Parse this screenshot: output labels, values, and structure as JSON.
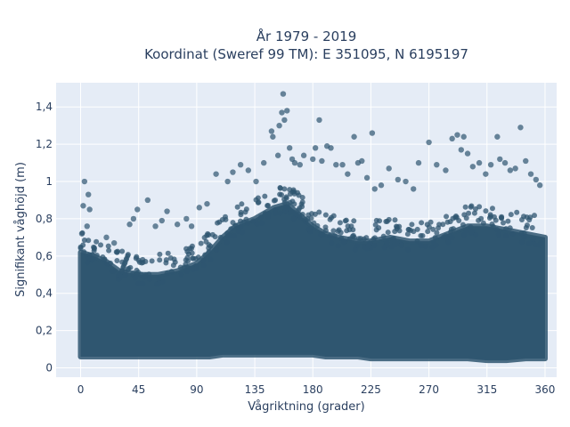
{
  "chart_data": {
    "type": "scatter",
    "title": [
      "År 1979 - 2019",
      "Koordinat (Sweref 99 TM): E 351095, N 6195197"
    ],
    "xlabel": "Vågriktning (grader)",
    "ylabel": "Signifikant våghöjd (m)",
    "xlim": [
      -19,
      369
    ],
    "ylim": [
      -0.05,
      1.53
    ],
    "xticks": [
      0,
      45,
      90,
      135,
      180,
      225,
      270,
      315,
      360
    ],
    "yticks": [
      0,
      0.2,
      0.4,
      0.6,
      0.8,
      1,
      1.2,
      1.4
    ],
    "yticklabels": [
      "0",
      "0,2",
      "0,4",
      "0,6",
      "0,8",
      "1",
      "1,2",
      "1,4"
    ],
    "grid": true,
    "marker_color": "#2f5670",
    "plot_bgcolor": "#e5ecf6",
    "density_envelope": {
      "direction_deg": [
        0,
        10,
        20,
        30,
        45,
        60,
        75,
        90,
        100,
        110,
        120,
        135,
        150,
        160,
        170,
        180,
        190,
        200,
        215,
        225,
        240,
        255,
        270,
        285,
        300,
        315,
        330,
        345,
        360
      ],
      "dense_upper_m": [
        0.62,
        0.6,
        0.57,
        0.52,
        0.5,
        0.5,
        0.52,
        0.56,
        0.62,
        0.7,
        0.76,
        0.8,
        0.86,
        0.88,
        0.82,
        0.76,
        0.72,
        0.7,
        0.68,
        0.68,
        0.7,
        0.68,
        0.68,
        0.72,
        0.76,
        0.76,
        0.74,
        0.72,
        0.7
      ],
      "dense_lower_m": [
        0.06,
        0.06,
        0.06,
        0.06,
        0.06,
        0.06,
        0.06,
        0.06,
        0.06,
        0.07,
        0.07,
        0.07,
        0.07,
        0.07,
        0.07,
        0.07,
        0.06,
        0.06,
        0.06,
        0.05,
        0.05,
        0.05,
        0.05,
        0.05,
        0.05,
        0.04,
        0.04,
        0.05,
        0.05
      ]
    },
    "outliers": [
      {
        "x": 3,
        "y": 1.0
      },
      {
        "x": 2,
        "y": 0.87
      },
      {
        "x": 6,
        "y": 0.93
      },
      {
        "x": 7,
        "y": 0.85
      },
      {
        "x": 5,
        "y": 0.76
      },
      {
        "x": 1,
        "y": 0.72
      },
      {
        "x": 20,
        "y": 0.7
      },
      {
        "x": 26,
        "y": 0.67
      },
      {
        "x": 38,
        "y": 0.77
      },
      {
        "x": 41,
        "y": 0.8
      },
      {
        "x": 44,
        "y": 0.85
      },
      {
        "x": 52,
        "y": 0.9
      },
      {
        "x": 58,
        "y": 0.76
      },
      {
        "x": 63,
        "y": 0.79
      },
      {
        "x": 67,
        "y": 0.84
      },
      {
        "x": 75,
        "y": 0.77
      },
      {
        "x": 82,
        "y": 0.8
      },
      {
        "x": 86,
        "y": 0.76
      },
      {
        "x": 92,
        "y": 0.86
      },
      {
        "x": 98,
        "y": 0.88
      },
      {
        "x": 105,
        "y": 1.04
      },
      {
        "x": 114,
        "y": 1.0
      },
      {
        "x": 118,
        "y": 1.05
      },
      {
        "x": 124,
        "y": 1.09
      },
      {
        "x": 130,
        "y": 1.06
      },
      {
        "x": 136,
        "y": 1.0
      },
      {
        "x": 142,
        "y": 1.1
      },
      {
        "x": 148,
        "y": 1.27
      },
      {
        "x": 149,
        "y": 1.24
      },
      {
        "x": 153,
        "y": 1.14
      },
      {
        "x": 154,
        "y": 1.3
      },
      {
        "x": 156,
        "y": 1.37
      },
      {
        "x": 157,
        "y": 1.47
      },
      {
        "x": 158,
        "y": 1.33
      },
      {
        "x": 160,
        "y": 1.38
      },
      {
        "x": 162,
        "y": 1.18
      },
      {
        "x": 164,
        "y": 1.12
      },
      {
        "x": 166,
        "y": 1.1
      },
      {
        "x": 170,
        "y": 1.09
      },
      {
        "x": 173,
        "y": 1.14
      },
      {
        "x": 180,
        "y": 1.12
      },
      {
        "x": 182,
        "y": 1.18
      },
      {
        "x": 185,
        "y": 1.33
      },
      {
        "x": 187,
        "y": 1.11
      },
      {
        "x": 191,
        "y": 1.19
      },
      {
        "x": 194,
        "y": 1.18
      },
      {
        "x": 198,
        "y": 1.09
      },
      {
        "x": 203,
        "y": 1.09
      },
      {
        "x": 207,
        "y": 1.04
      },
      {
        "x": 212,
        "y": 1.24
      },
      {
        "x": 215,
        "y": 1.1
      },
      {
        "x": 218,
        "y": 1.11
      },
      {
        "x": 222,
        "y": 1.02
      },
      {
        "x": 226,
        "y": 1.26
      },
      {
        "x": 228,
        "y": 0.96
      },
      {
        "x": 233,
        "y": 0.98
      },
      {
        "x": 239,
        "y": 1.07
      },
      {
        "x": 246,
        "y": 1.01
      },
      {
        "x": 252,
        "y": 1.0
      },
      {
        "x": 258,
        "y": 0.96
      },
      {
        "x": 262,
        "y": 1.1
      },
      {
        "x": 270,
        "y": 1.21
      },
      {
        "x": 276,
        "y": 1.09
      },
      {
        "x": 283,
        "y": 1.06
      },
      {
        "x": 288,
        "y": 1.23
      },
      {
        "x": 292,
        "y": 1.25
      },
      {
        "x": 295,
        "y": 1.17
      },
      {
        "x": 297,
        "y": 1.24
      },
      {
        "x": 300,
        "y": 1.15
      },
      {
        "x": 304,
        "y": 1.08
      },
      {
        "x": 309,
        "y": 1.1
      },
      {
        "x": 314,
        "y": 1.04
      },
      {
        "x": 318,
        "y": 1.09
      },
      {
        "x": 323,
        "y": 1.24
      },
      {
        "x": 325,
        "y": 1.12
      },
      {
        "x": 329,
        "y": 1.1
      },
      {
        "x": 333,
        "y": 1.06
      },
      {
        "x": 337,
        "y": 1.07
      },
      {
        "x": 341,
        "y": 1.29
      },
      {
        "x": 345,
        "y": 1.11
      },
      {
        "x": 349,
        "y": 1.04
      },
      {
        "x": 353,
        "y": 1.01
      },
      {
        "x": 356,
        "y": 0.98
      }
    ]
  }
}
